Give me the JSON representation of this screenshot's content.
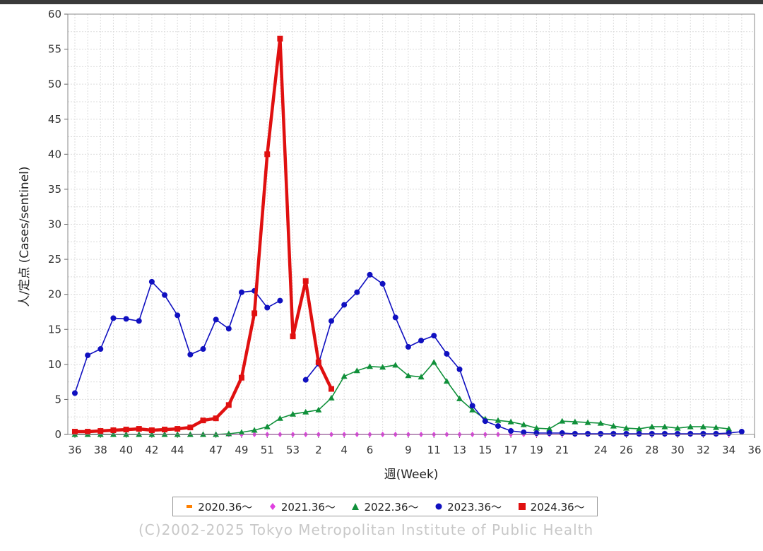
{
  "chart_data": {
    "type": "line",
    "title": "",
    "xlabel": "週(Week)",
    "ylabel": "人/定点 (Cases/sentinel)",
    "ylim": [
      0,
      60
    ],
    "yticks": [
      0,
      5,
      10,
      15,
      20,
      25,
      30,
      35,
      40,
      45,
      50,
      55,
      60
    ],
    "xtick_labels": [
      "36",
      "38",
      "40",
      "42",
      "44",
      "47",
      "49",
      "51",
      "53",
      "2",
      "4",
      "6",
      "9",
      "11",
      "13",
      "15",
      "17",
      "19",
      "21",
      "24",
      "26",
      "28",
      "30",
      "32",
      "34",
      "36"
    ],
    "grid": true,
    "legend_position": "bottom",
    "series": [
      {
        "name": "2020.36〜",
        "color": "#ff8000",
        "marker": "dash",
        "x": [],
        "values": []
      },
      {
        "name": "2021.36〜",
        "color": "#e040e0",
        "marker": "diamond",
        "x": [
          0,
          1,
          2,
          3,
          4,
          5,
          6,
          7,
          8,
          9,
          10,
          11,
          12,
          13,
          14,
          15,
          16,
          17,
          18,
          19,
          20,
          21,
          22,
          23,
          24,
          25,
          26,
          27,
          28,
          29,
          30,
          31,
          32,
          33,
          34,
          35,
          36,
          37,
          38,
          39,
          40,
          41,
          42,
          43,
          44,
          45,
          46,
          47,
          48,
          49,
          50,
          51
        ],
        "values": [
          0,
          0,
          0,
          0,
          0,
          0,
          0,
          0,
          0,
          0,
          0,
          0,
          0,
          0,
          0,
          0,
          0,
          0,
          0,
          0,
          0,
          0,
          0,
          0,
          0,
          0,
          0,
          0,
          0,
          0,
          0,
          0,
          0,
          0,
          0,
          0,
          0,
          0,
          0,
          0,
          0,
          0,
          0,
          0,
          0,
          0,
          0,
          0,
          0,
          0,
          0,
          0
        ]
      },
      {
        "name": "2022.36〜",
        "color": "#10903a",
        "marker": "triangle",
        "x": [
          0,
          1,
          2,
          3,
          4,
          5,
          6,
          7,
          8,
          9,
          10,
          11,
          12,
          13,
          14,
          15,
          16,
          17,
          18,
          19,
          20,
          21,
          22,
          23,
          24,
          25,
          26,
          27,
          28,
          29,
          30,
          31,
          32,
          33,
          34,
          35,
          36,
          37,
          38,
          39,
          40,
          41,
          42,
          43,
          44,
          45,
          46,
          47,
          48,
          49,
          50,
          51
        ],
        "values": [
          0,
          0,
          0,
          0,
          0,
          0,
          0,
          0,
          0,
          0,
          0,
          0,
          0.1,
          0.3,
          0.6,
          1.1,
          2.3,
          2.9,
          3.2,
          3.5,
          5.2,
          8.3,
          9.1,
          9.7,
          9.6,
          9.9,
          8.4,
          8.2,
          10.3,
          7.6,
          5.1,
          3.5,
          2.2,
          2.0,
          1.8,
          1.4,
          0.9,
          0.8,
          1.9,
          1.8,
          1.7,
          1.6,
          1.2,
          0.9,
          0.8,
          1.1,
          1.1,
          0.9,
          1.1,
          1.1,
          1.0,
          0.8
        ]
      },
      {
        "name": "2023.36〜",
        "color": "#1010c0",
        "marker": "circle",
        "x": [
          0,
          1,
          2,
          3,
          4,
          5,
          6,
          7,
          8,
          9,
          10,
          11,
          12,
          13,
          14,
          15,
          16,
          17,
          18,
          19,
          20,
          21,
          22,
          23,
          24,
          25,
          26,
          27,
          28,
          29,
          30,
          31,
          32,
          33,
          34,
          35,
          36,
          37,
          38,
          39,
          40,
          41,
          42,
          43,
          44,
          45,
          46,
          47,
          48,
          49,
          50,
          51,
          52
        ],
        "values": [
          5.9,
          11.3,
          12.2,
          16.6,
          16.5,
          16.2,
          21.8,
          19.9,
          17.0,
          11.4,
          12.2,
          16.4,
          15.1,
          20.3,
          20.5,
          18.1,
          19.1,
          null,
          7.8,
          10.1,
          16.2,
          18.5,
          20.3,
          22.8,
          21.5,
          16.7,
          12.5,
          13.4,
          14.1,
          11.5,
          9.3,
          4.1,
          1.9,
          1.2,
          0.5,
          0.3,
          0.2,
          0.2,
          0.2,
          0.1,
          0.1,
          0.1,
          0.1,
          0.1,
          0.1,
          0.1,
          0.1,
          0.1,
          0.1,
          0.1,
          0.1,
          0.2,
          0.4
        ]
      },
      {
        "name": "2024.36〜",
        "color": "#e01010",
        "marker": "square",
        "x": [
          0,
          1,
          2,
          3,
          4,
          5,
          6,
          7,
          8,
          9,
          10,
          11,
          12,
          13,
          14,
          15,
          16,
          17,
          18,
          19,
          20,
          21
        ],
        "values": [
          0.4,
          0.4,
          0.5,
          0.6,
          0.7,
          0.8,
          0.6,
          0.7,
          0.8,
          1.0,
          2.0,
          2.3,
          4.2,
          8.1,
          17.3,
          40.0,
          56.5,
          14.0,
          21.9,
          10.3,
          6.5,
          null
        ]
      }
    ]
  },
  "copyright": "(C)2002-2025 Tokyo Metropolitan Institute of Public Health"
}
